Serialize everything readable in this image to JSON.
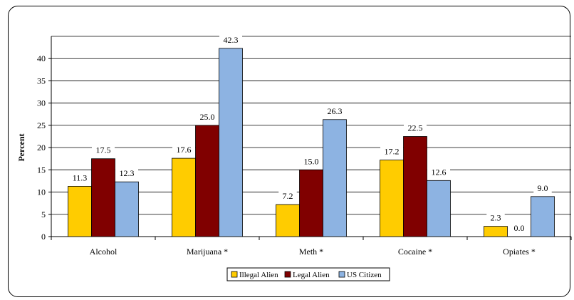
{
  "chart_data": {
    "type": "bar",
    "categories": [
      "Alcohol",
      "Marijuana *",
      "Meth *",
      "Cocaine *",
      "Opiates *"
    ],
    "series": [
      {
        "name": "Illegal Alien",
        "color": "#FFCC00",
        "values": [
          11.3,
          17.6,
          7.2,
          17.2,
          2.3
        ]
      },
      {
        "name": "Legal Alien",
        "color": "#800000",
        "values": [
          17.5,
          25.0,
          15.0,
          22.5,
          0.0
        ]
      },
      {
        "name": "US Citizen",
        "color": "#8DB3E2",
        "values": [
          12.3,
          42.3,
          26.3,
          12.6,
          9.0
        ]
      }
    ],
    "ylabel": "Percent",
    "ylim": [
      0,
      45
    ],
    "yticks": [
      0,
      5,
      10,
      15,
      20,
      25,
      30,
      35,
      40
    ],
    "value_labels": [
      [
        "11.3",
        "17.6",
        "7.2",
        "17.2",
        "2.3"
      ],
      [
        "17.5",
        "25.0",
        "15.0",
        "22.5",
        "0.0"
      ],
      [
        "12.3",
        "42.3",
        "26.3",
        "12.6",
        "9.0"
      ]
    ],
    "grid": true,
    "legend_position": "bottom"
  }
}
